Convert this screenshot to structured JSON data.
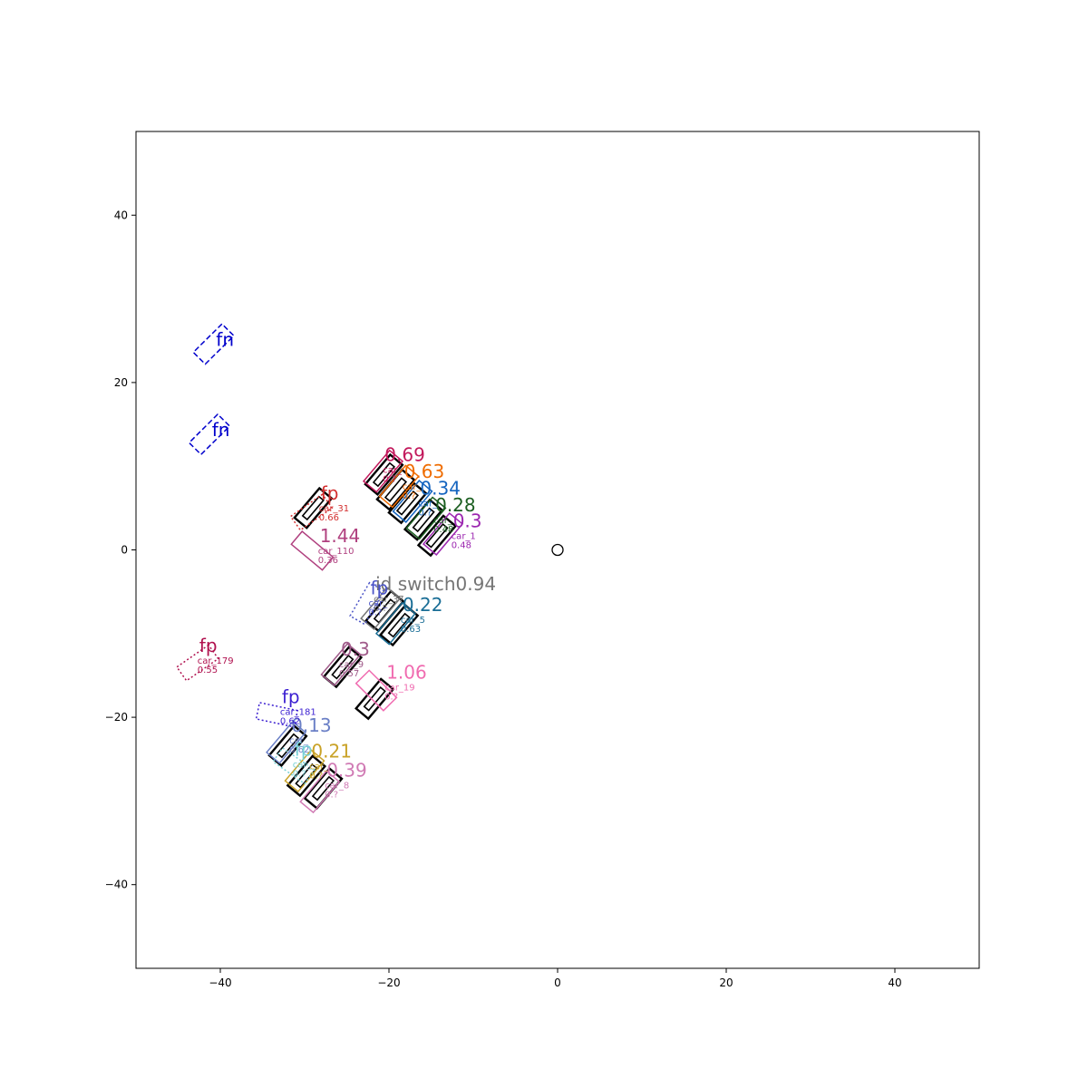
{
  "chart_data": {
    "type": "scatter",
    "title": "",
    "xlabel": "",
    "ylabel": "",
    "xlim": [
      -50,
      50
    ],
    "ylim": [
      -50,
      50
    ],
    "xticks": [
      -40,
      -20,
      0,
      20,
      40
    ],
    "yticks": [
      -40,
      -20,
      0,
      20,
      40
    ],
    "tick_labels_x": [
      "−40",
      "−20",
      "0",
      "20",
      "40"
    ],
    "tick_labels_y": [
      "−40",
      "−20",
      "0",
      "20",
      "40"
    ],
    "grid": false,
    "ego": {
      "x": 0,
      "y": 0
    },
    "ground_truth_boxes": [
      {
        "x": -20.6,
        "y": 9.0,
        "length": 4.6,
        "width": 1.9,
        "yaw": 50
      },
      {
        "x": -19.2,
        "y": 7.2,
        "length": 4.6,
        "width": 1.9,
        "yaw": 50
      },
      {
        "x": -17.8,
        "y": 5.6,
        "length": 4.6,
        "width": 1.9,
        "yaw": 50
      },
      {
        "x": -15.9,
        "y": 3.6,
        "length": 4.6,
        "width": 1.9,
        "yaw": 50
      },
      {
        "x": -14.3,
        "y": 1.7,
        "length": 4.6,
        "width": 1.9,
        "yaw": 50
      },
      {
        "x": -29.0,
        "y": 5.0,
        "length": 4.6,
        "width": 1.9,
        "yaw": 50
      },
      {
        "x": -20.5,
        "y": -7.3,
        "length": 4.6,
        "width": 1.9,
        "yaw": 50
      },
      {
        "x": -18.8,
        "y": -9.0,
        "length": 4.6,
        "width": 1.9,
        "yaw": 50
      },
      {
        "x": -25.5,
        "y": -14.0,
        "length": 4.6,
        "width": 1.9,
        "yaw": 50
      },
      {
        "x": -21.7,
        "y": -17.8,
        "length": 4.6,
        "width": 1.9,
        "yaw": 50
      },
      {
        "x": -32.0,
        "y": -23.4,
        "length": 4.6,
        "width": 1.9,
        "yaw": 50
      },
      {
        "x": -29.8,
        "y": -27.0,
        "length": 4.6,
        "width": 1.9,
        "yaw": 50
      },
      {
        "x": -27.8,
        "y": -28.5,
        "length": 4.6,
        "width": 1.9,
        "yaw": 50
      }
    ],
    "predictions": [
      {
        "kind": "match",
        "x": -20.7,
        "y": 9.4,
        "length": 4.8,
        "width": 2.0,
        "yaw": 50,
        "color": "#c2185b",
        "score": "0.69",
        "id": "car_",
        "conf": "0.?",
        "score_dx": 0.2,
        "score_dy": 1.2
      },
      {
        "kind": "match",
        "x": -18.8,
        "y": 7.6,
        "length": 4.8,
        "width": 2.0,
        "yaw": 50,
        "color": "#ef6c00",
        "score": "0.63",
        "id": "car_",
        "conf": "0.?",
        "score_dx": 0.6,
        "score_dy": 1.0
      },
      {
        "kind": "match",
        "x": -17.2,
        "y": 5.8,
        "length": 4.8,
        "width": 2.0,
        "yaw": 50,
        "color": "#1565c0",
        "score": "0.34",
        "id": "car_",
        "conf": "0.?",
        "score_dx": 0.9,
        "score_dy": 0.8
      },
      {
        "kind": "match",
        "x": -15.6,
        "y": 3.8,
        "length": 4.8,
        "width": 2.0,
        "yaw": 50,
        "color": "#1b5e20",
        "score": "0.28",
        "id": "car_",
        "conf": "0.48",
        "score_dx": 1.1,
        "score_dy": 0.8
      },
      {
        "kind": "match",
        "x": -13.6,
        "y": 1.9,
        "length": 4.8,
        "width": 2.0,
        "yaw": 50,
        "color": "#9c27b0",
        "score": "0.3",
        "id": "car_1",
        "conf": "0.48",
        "score_dx": 1.2,
        "score_dy": 0.8
      },
      {
        "kind": "match",
        "x": -29.1,
        "y": -0.1,
        "length": 4.8,
        "width": 2.0,
        "yaw": -40,
        "color": "#b0407f",
        "score": "1.44",
        "id": "car_110",
        "conf": "0.36",
        "score_dx": 0.9,
        "score_dy": 1.0
      },
      {
        "kind": "match",
        "x": -21.0,
        "y": -7.0,
        "length": 4.8,
        "width": 2.0,
        "yaw": 50,
        "color": "#757575",
        "score": "id switch0.94",
        "id": "car_37",
        "conf": "0.?",
        "score_dx": -0.6,
        "score_dy": 2.2
      },
      {
        "kind": "match",
        "x": -19.2,
        "y": -8.8,
        "length": 4.8,
        "width": 2.0,
        "yaw": 50,
        "color": "#1a6e96",
        "score": "0.22",
        "id": "car_5",
        "conf": "0.63",
        "score_dx": 0.8,
        "score_dy": 1.5
      },
      {
        "kind": "match",
        "x": -25.7,
        "y": -13.7,
        "length": 4.8,
        "width": 2.0,
        "yaw": 50,
        "color": "#a05b8a",
        "score": "0.3",
        "id": "car_9",
        "conf": "0.57",
        "score_dx": 0.0,
        "score_dy": 1.1
      },
      {
        "kind": "match",
        "x": -21.5,
        "y": -16.8,
        "length": 4.6,
        "width": 2.2,
        "yaw": -45,
        "color": "#f06bb0",
        "score": "1.06",
        "id": "car_19",
        "conf": "0.?",
        "score_dx": 1.2,
        "score_dy": 1.4
      },
      {
        "kind": "match",
        "x": -32.2,
        "y": -23.0,
        "length": 4.8,
        "width": 2.0,
        "yaw": 50,
        "color": "#6a7fc6",
        "score": "0.13",
        "id": "car_",
        "conf": "0.62",
        "score_dx": 0.6,
        "score_dy": 1.3
      },
      {
        "kind": "match",
        "x": -30.0,
        "y": -26.4,
        "length": 4.8,
        "width": 2.0,
        "yaw": 50,
        "color": "#c9a227",
        "score": "0.21",
        "id": "car_",
        "conf": "0.?",
        "score_dx": 0.8,
        "score_dy": 1.6
      },
      {
        "kind": "match",
        "x": -28.2,
        "y": -28.9,
        "length": 4.8,
        "width": 2.0,
        "yaw": 50,
        "color": "#d07ab4",
        "score": "0.39",
        "id": "car_8",
        "conf": "0.?",
        "score_dx": 0.8,
        "score_dy": 1.8
      },
      {
        "kind": "fp",
        "x": -29.2,
        "y": 4.5,
        "length": 4.6,
        "width": 2.0,
        "yaw": 35,
        "color": "#d32f2f",
        "score": "fp",
        "id": "car_31",
        "conf": "0.66",
        "score_dx": 1.1,
        "score_dy": 1.5
      },
      {
        "kind": "fp",
        "x": -22.6,
        "y": -6.4,
        "length": 4.6,
        "width": 2.0,
        "yaw": 60,
        "color": "#4c55c7",
        "score": "fp",
        "id": "car_",
        "conf": "0.?",
        "score_dx": 0.4,
        "score_dy": 1.1
      },
      {
        "kind": "fp",
        "x": -42.7,
        "y": -13.5,
        "length": 4.6,
        "width": 2.0,
        "yaw": 35,
        "color": "#b0104e",
        "score": "fp",
        "id": "car_179",
        "conf": "0.55",
        "score_dx": 0.2,
        "score_dy": 1.3
      },
      {
        "kind": "fp",
        "x": -33.3,
        "y": -19.7,
        "length": 4.6,
        "width": 2.0,
        "yaw": -12,
        "color": "#3b1fd1",
        "score": "fp",
        "id": "car_181",
        "conf": "0.62",
        "score_dx": 0.6,
        "score_dy": 1.4
      },
      {
        "kind": "fp",
        "x": -31.3,
        "y": -25.8,
        "length": 4.6,
        "width": 2.0,
        "yaw": -35,
        "color": "#79d1d6",
        "score": "fp",
        "id": "car_",
        "conf": "0.?",
        "score_dx": 0.1,
        "score_dy": 1.2
      },
      {
        "kind": "fn",
        "x": -40.8,
        "y": 24.6,
        "length": 4.8,
        "width": 2.0,
        "yaw": 45,
        "color": "#0000cc",
        "score": "fn",
        "id": "",
        "conf": "",
        "score_dx": 0.3,
        "score_dy": -0.2
      },
      {
        "kind": "fn",
        "x": -41.3,
        "y": 13.8,
        "length": 4.8,
        "width": 2.0,
        "yaw": 45,
        "color": "#0000cc",
        "score": "fn",
        "id": "",
        "conf": "",
        "score_dx": 0.3,
        "score_dy": -0.2
      }
    ]
  }
}
